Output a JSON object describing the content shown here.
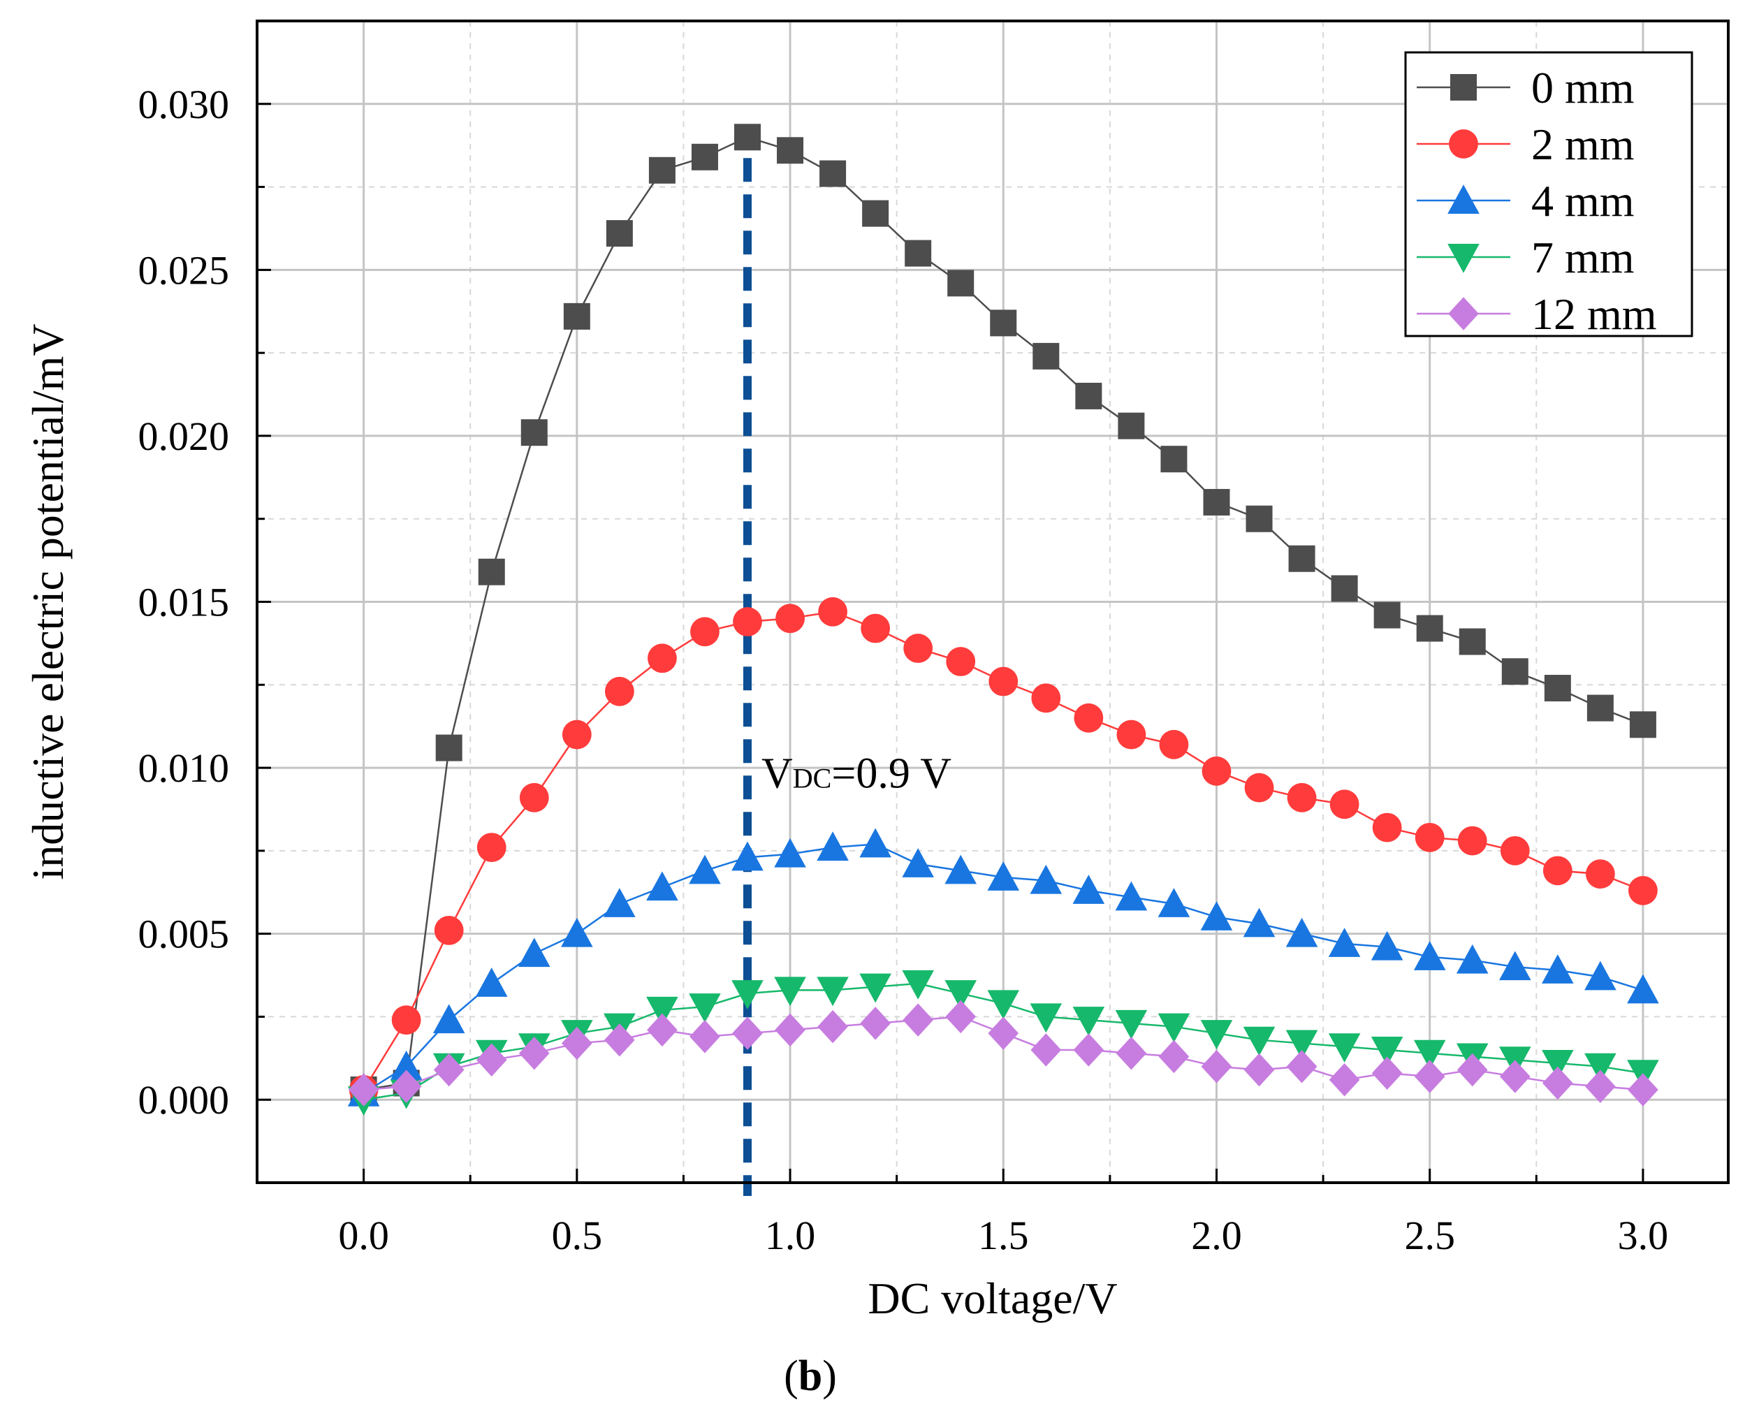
{
  "chart_data": {
    "type": "line",
    "xlabel": "DC voltage/V",
    "ylabel": "inductive electric potential/mV",
    "xlim": [
      -0.25,
      3.2
    ],
    "ylim": [
      -0.0025,
      0.0325
    ],
    "x_ticks": [
      0.0,
      0.5,
      1.0,
      1.5,
      2.0,
      2.5,
      3.0
    ],
    "x_tick_labels": [
      "0.0",
      "0.5",
      "1.0",
      "1.5",
      "2.0",
      "2.5",
      "3.0"
    ],
    "y_ticks": [
      0.0,
      0.005,
      0.01,
      0.015,
      0.02,
      0.025,
      0.03
    ],
    "y_tick_labels": [
      "0.000",
      "0.005",
      "0.010",
      "0.015",
      "0.020",
      "0.025",
      "0.030"
    ],
    "grid": true,
    "legend_position": "top-right",
    "x": [
      0.0,
      0.1,
      0.2,
      0.3,
      0.4,
      0.5,
      0.6,
      0.7,
      0.8,
      0.9,
      1.0,
      1.1,
      1.2,
      1.3,
      1.4,
      1.5,
      1.6,
      1.7,
      1.8,
      1.9,
      2.0,
      2.1,
      2.2,
      2.3,
      2.4,
      2.5,
      2.6,
      2.7,
      2.8,
      2.9,
      3.0
    ],
    "series": [
      {
        "name": "0 mm",
        "color": "#4d4d4d",
        "marker": "square",
        "values": [
          0.0003,
          0.0005,
          0.0106,
          0.0159,
          0.0201,
          0.0236,
          0.0261,
          0.028,
          0.0284,
          0.029,
          0.0286,
          0.0279,
          0.0267,
          0.0255,
          0.0246,
          0.0234,
          0.0224,
          0.0212,
          0.0203,
          0.0193,
          0.018,
          0.0175,
          0.0163,
          0.0154,
          0.0146,
          0.0142,
          0.0138,
          0.0129,
          0.0124,
          0.0118,
          0.0113
        ]
      },
      {
        "name": "2 mm",
        "color": "#ff3b3b",
        "marker": "circle",
        "values": [
          0.0003,
          0.0024,
          0.0051,
          0.0076,
          0.0091,
          0.011,
          0.0123,
          0.0133,
          0.0141,
          0.0144,
          0.0145,
          0.0147,
          0.0142,
          0.0136,
          0.0132,
          0.0126,
          0.0121,
          0.0115,
          0.011,
          0.0107,
          0.0099,
          0.0094,
          0.0091,
          0.0089,
          0.0082,
          0.0079,
          0.0078,
          0.0075,
          0.0069,
          0.0068,
          0.0063
        ]
      },
      {
        "name": "4 mm",
        "color": "#1976e0",
        "marker": "triangle-up",
        "values": [
          0.0002,
          0.001,
          0.0024,
          0.0035,
          0.0044,
          0.005,
          0.0059,
          0.0064,
          0.0069,
          0.0073,
          0.0074,
          0.0076,
          0.0077,
          0.0071,
          0.0069,
          0.0067,
          0.0066,
          0.0063,
          0.0061,
          0.0059,
          0.0055,
          0.0053,
          0.005,
          0.0047,
          0.0046,
          0.0043,
          0.0042,
          0.004,
          0.0039,
          0.0037,
          0.0033
        ]
      },
      {
        "name": "7 mm",
        "color": "#16b86b",
        "marker": "triangle-down",
        "values": [
          0.0,
          0.0002,
          0.001,
          0.0014,
          0.0016,
          0.002,
          0.0022,
          0.0027,
          0.0028,
          0.0032,
          0.0033,
          0.0033,
          0.0034,
          0.0035,
          0.0032,
          0.0029,
          0.0025,
          0.0024,
          0.0023,
          0.0022,
          0.002,
          0.0018,
          0.0017,
          0.0016,
          0.0015,
          0.0014,
          0.0013,
          0.0012,
          0.0011,
          0.001,
          0.0008
        ]
      },
      {
        "name": "12 mm",
        "color": "#c77de0",
        "marker": "diamond",
        "values": [
          0.0003,
          0.0004,
          0.0009,
          0.0012,
          0.0014,
          0.0017,
          0.0018,
          0.0021,
          0.0019,
          0.002,
          0.0021,
          0.0022,
          0.0023,
          0.0024,
          0.0025,
          0.002,
          0.0015,
          0.0015,
          0.0014,
          0.0013,
          0.001,
          0.0009,
          0.001,
          0.0006,
          0.0008,
          0.0007,
          0.0009,
          0.0007,
          0.0005,
          0.0004,
          0.0003
        ]
      }
    ],
    "annotation": {
      "x": 0.9,
      "label_main": "V",
      "label_sub": "DC",
      "label_rest": "=0.9 V",
      "line_color": "#0d4f94"
    },
    "panel_label": {
      "open": "(",
      "letter": "b",
      "close": ")"
    }
  }
}
